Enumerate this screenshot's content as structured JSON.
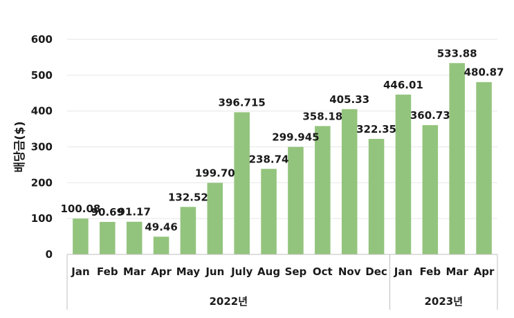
{
  "chart_data": {
    "type": "bar",
    "categories": [
      "Jan",
      "Feb",
      "Mar",
      "Apr",
      "May",
      "Jun",
      "July",
      "Aug",
      "Sep",
      "Oct",
      "Nov",
      "Dec",
      "Jan",
      "Feb",
      "Mar",
      "Apr"
    ],
    "values": [
      100.08,
      90.69,
      91.17,
      49.46,
      132.52,
      199.7,
      396.715,
      238.74,
      299.945,
      358.18,
      405.33,
      322.35,
      446.01,
      360.73,
      533.88,
      480.87
    ],
    "data_labels": [
      "100.08",
      "90.69",
      "91.17",
      "49.46",
      "132.52",
      "199.70",
      "396.715",
      "238.74",
      "299.945",
      "358.18",
      "405.33",
      "322.35",
      "446.01",
      "360.73",
      "533.88",
      "480.87"
    ],
    "groups": [
      {
        "label": "2022년",
        "count": 12
      },
      {
        "label": "2023년",
        "count": 4
      }
    ],
    "ylabel": "배당금($)",
    "xlabel": "",
    "ylim": [
      0,
      600
    ],
    "yticks": [
      0,
      100,
      200,
      300,
      400,
      500,
      600
    ],
    "grid": true,
    "bar_color": "#93c47d",
    "gridline_color": "#e6e6e6",
    "axis_color": "#bfbfbf"
  }
}
